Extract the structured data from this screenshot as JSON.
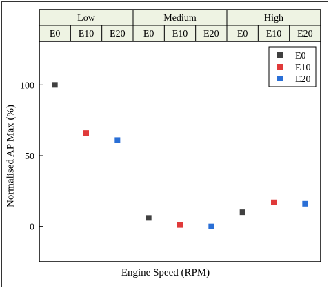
{
  "chart_data": {
    "type": "scatter",
    "xlabel": "Engine Speed (RPM)",
    "ylabel": "Normalised AP Max (%)",
    "ylim": [
      -25,
      125
    ],
    "yticks": [
      0,
      50,
      100
    ],
    "groups": [
      "Low",
      "Medium",
      "High"
    ],
    "categories": [
      "E0",
      "E10",
      "E20",
      "E0",
      "E10",
      "E20",
      "E0",
      "E10",
      "E20"
    ],
    "series": [
      {
        "name": "E0",
        "color": "#404040",
        "x_index": [
          0,
          3,
          6
        ],
        "values": [
          100,
          6,
          10
        ]
      },
      {
        "name": "E10",
        "color": "#e03a3a",
        "x_index": [
          1,
          4,
          7
        ],
        "values": [
          66,
          1,
          17
        ]
      },
      {
        "name": "E20",
        "color": "#2a6fd6",
        "x_index": [
          2,
          5,
          8
        ],
        "values": [
          61,
          0,
          16
        ]
      }
    ],
    "legend": {
      "placement": "top-right",
      "entries": [
        "E0",
        "E10",
        "E20"
      ]
    },
    "header_background": "#eef3e3",
    "grid": false
  }
}
